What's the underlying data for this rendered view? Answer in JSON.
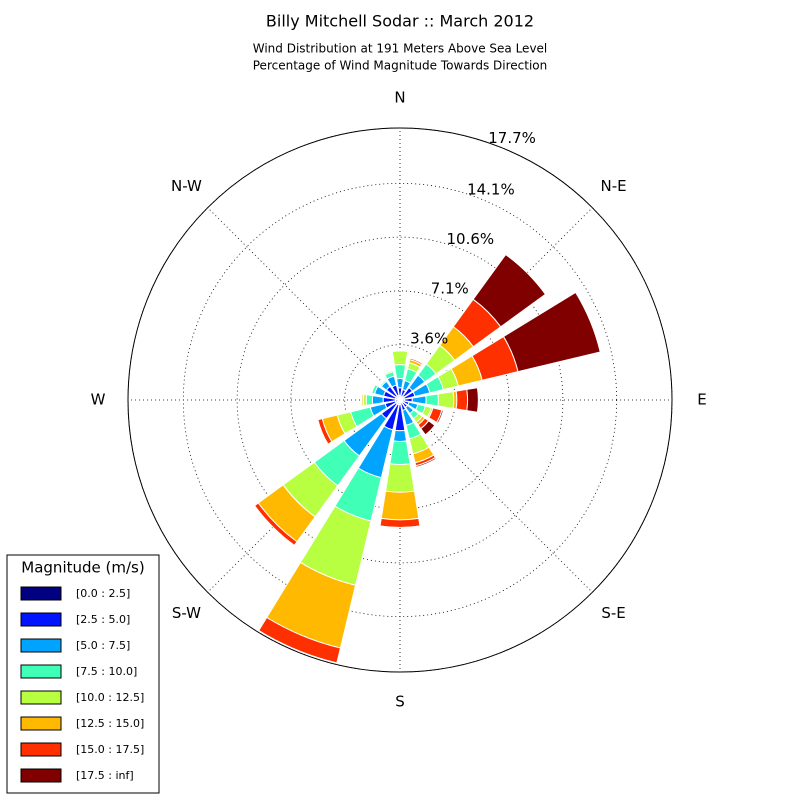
{
  "chart_data": {
    "type": "windrose",
    "title": "Billy Mitchell Sodar :: March 2012",
    "subtitle": [
      "Wind Distribution at 191 Meters Above Sea Level",
      "Percentage of Wind Magnitude Towards Direction"
    ],
    "direction_labels": [
      "N",
      "N-E",
      "E",
      "S-E",
      "S",
      "S-W",
      "W",
      "N-W"
    ],
    "ylim": [
      0,
      17.7
    ],
    "yticks": [
      {
        "value": 3.6,
        "label": "3.6%"
      },
      {
        "value": 7.1,
        "label": "7.1%"
      },
      {
        "value": 10.6,
        "label": "10.6%"
      },
      {
        "value": 14.1,
        "label": "14.1%"
      },
      {
        "value": 17.7,
        "label": "17.7%"
      }
    ],
    "grid": true,
    "legend_title": "Magnitude (m/s)",
    "legend_position": "lower left",
    "series": [
      {
        "name": "[0.0 : 2.5]",
        "color": "#000080",
        "values": [
          0.3,
          0.2,
          0.3,
          0.3,
          0.3,
          0.2,
          0.2,
          0.2,
          0.3,
          0.3,
          0.3,
          0.3,
          0.3,
          0.3,
          0.3,
          0.3
        ]
      },
      {
        "name": "[2.5 : 5.0]",
        "color": "#0014ff",
        "values": [
          0.5,
          0.5,
          0.7,
          0.7,
          0.5,
          0.4,
          0.4,
          0.5,
          1.7,
          1.7,
          1.2,
          0.7,
          0.8,
          0.8,
          0.8,
          0.7
        ]
      },
      {
        "name": "[5.0 : 7.5]",
        "color": "#00a4ff",
        "values": [
          0.6,
          0.6,
          1.0,
          1.0,
          0.9,
          0.6,
          0.5,
          1.0,
          0.7,
          3.2,
          3.0,
          1.0,
          0.7,
          0.6,
          0.4,
          0.6
        ]
      },
      {
        "name": "[7.5 : 10.0]",
        "color": "#40ffb7",
        "values": [
          0.9,
          0.8,
          0.9,
          0.9,
          0.8,
          0.5,
          0.4,
          0.9,
          1.5,
          2.9,
          2.4,
          1.3,
          0.4,
          0.2,
          0.1,
          0.3
        ]
      },
      {
        "name": "[10.0 : 12.5]",
        "color": "#b7ff40",
        "values": [
          0.9,
          0.4,
          1.5,
          1.0,
          1.0,
          0.4,
          0.3,
          1.0,
          1.8,
          4.3,
          2.5,
          0.9,
          0.2,
          0,
          0,
          0.1
        ]
      },
      {
        "name": "[12.5 : 15.0]",
        "color": "#ffb900",
        "values": [
          0.05,
          0.2,
          1.5,
          1.6,
          0.2,
          0.1,
          0.2,
          0.6,
          1.8,
          4.2,
          2.0,
          1.0,
          0.1,
          0,
          0,
          0
        ]
      },
      {
        "name": "[15.0 : 17.5]",
        "color": "#ff3000",
        "values": [
          0,
          0.1,
          2.2,
          2.4,
          0.7,
          0.6,
          0.3,
          0.2,
          0.5,
          1.0,
          0.3,
          0.3,
          0,
          0,
          0,
          0
        ]
      },
      {
        "name": "[17.5 : inf]",
        "color": "#800000",
        "values": [
          0,
          0,
          3.6,
          5.5,
          0.7,
          0.1,
          0.5,
          0.1,
          0,
          0,
          0,
          0,
          0,
          0,
          0,
          0
        ]
      }
    ]
  }
}
